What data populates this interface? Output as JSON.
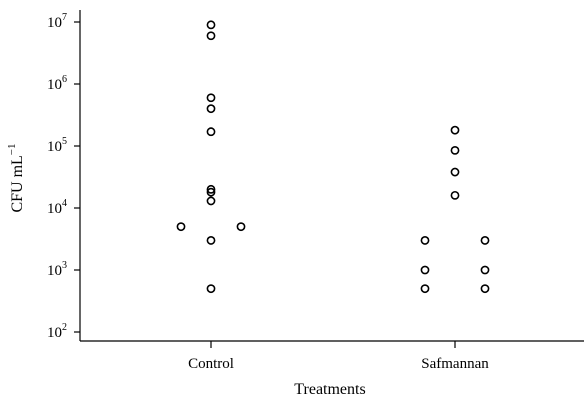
{
  "chart_data": {
    "type": "scatter",
    "title": "",
    "xlabel": "Treatments",
    "ylabel": "CFU mL",
    "ylabel_superscript": "−1",
    "yscale": "log",
    "ylim": [
      80,
      15000000
    ],
    "y_ticks": [
      {
        "value": 100,
        "base": "10",
        "exp": "2"
      },
      {
        "value": 1000,
        "base": "10",
        "exp": "3"
      },
      {
        "value": 10000,
        "base": "10",
        "exp": "4"
      },
      {
        "value": 100000,
        "base": "10",
        "exp": "5"
      },
      {
        "value": 1000000,
        "base": "10",
        "exp": "6"
      },
      {
        "value": 10000000,
        "base": "10",
        "exp": "7"
      }
    ],
    "categories": [
      "Control",
      "Safmannan"
    ],
    "grid": false,
    "series": [
      {
        "category": "Control",
        "points": [
          {
            "y": 9000000,
            "jitter": 0
          },
          {
            "y": 6000000,
            "jitter": 0
          },
          {
            "y": 600000,
            "jitter": 0
          },
          {
            "y": 400000,
            "jitter": 0
          },
          {
            "y": 170000,
            "jitter": 0
          },
          {
            "y": 20000,
            "jitter": 0
          },
          {
            "y": 18000,
            "jitter": 0
          },
          {
            "y": 13000,
            "jitter": 0
          },
          {
            "y": 5000,
            "jitter": -1
          },
          {
            "y": 5000,
            "jitter": 1
          },
          {
            "y": 3000,
            "jitter": 0
          },
          {
            "y": 500,
            "jitter": 0
          }
        ]
      },
      {
        "category": "Safmannan",
        "points": [
          {
            "y": 180000,
            "jitter": 0
          },
          {
            "y": 85000,
            "jitter": 0
          },
          {
            "y": 38000,
            "jitter": 0
          },
          {
            "y": 16000,
            "jitter": 0
          },
          {
            "y": 3000,
            "jitter": -1
          },
          {
            "y": 3000,
            "jitter": 1
          },
          {
            "y": 1000,
            "jitter": -1
          },
          {
            "y": 1000,
            "jitter": 1
          },
          {
            "y": 500,
            "jitter": -1
          },
          {
            "y": 500,
            "jitter": 1
          }
        ]
      }
    ]
  }
}
